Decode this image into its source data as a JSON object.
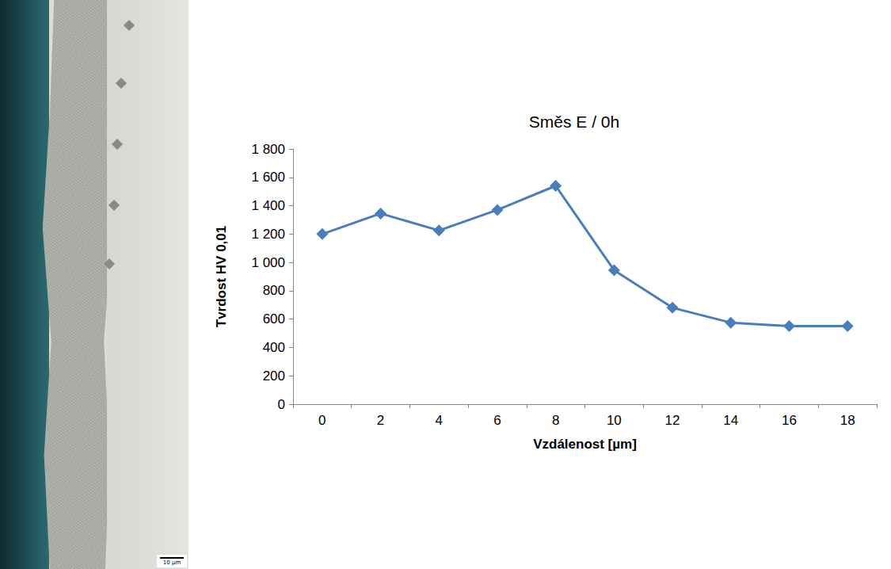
{
  "chart_data": {
    "type": "line",
    "title": "Směs E / 0h",
    "x_label": "Vzdálenost [µm]",
    "y_label": "Tvrdost HV 0,01",
    "categories": [
      "0",
      "2",
      "4",
      "6",
      "8",
      "10",
      "12",
      "14",
      "16",
      "18"
    ],
    "series": [
      {
        "name": "Směs E / 0h",
        "color": "#4a7ebb",
        "marker": "diamond",
        "line_style": "solid",
        "values": [
          1200,
          1345,
          1225,
          1370,
          1540,
          945,
          680,
          575,
          550,
          550
        ]
      }
    ],
    "ylim": [
      0,
      1800
    ],
    "yticks": [
      0,
      200,
      400,
      600,
      800,
      {
        "value": 1000,
        "label": "1 000"
      },
      {
        "value": 1200,
        "label": "1 200"
      },
      {
        "value": 1400,
        "label": "1 400"
      },
      {
        "value": 1600,
        "label": "1 600"
      },
      {
        "value": 1800,
        "label": "1 800"
      }
    ],
    "grid": false
  },
  "micrograph": {
    "scale_bar": "10 µm"
  }
}
